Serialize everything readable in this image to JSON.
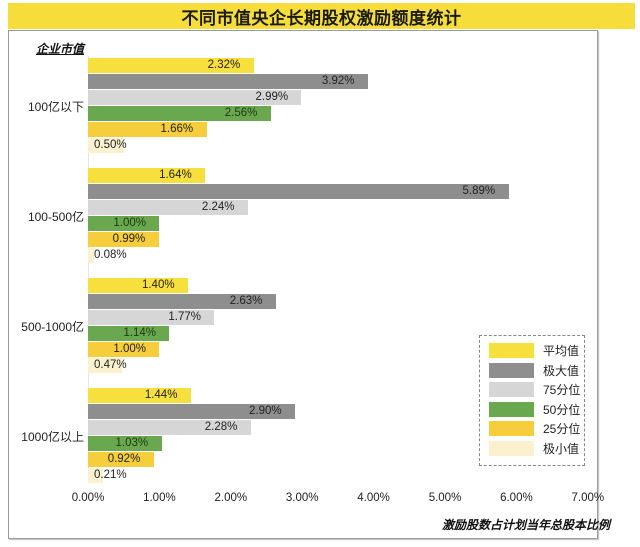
{
  "title": "不同市值央企长期股权激励额度统计",
  "colors": {
    "title_bar": "#f7dd3a",
    "平均值": "#f7df3d",
    "极大值": "#8e8e8e",
    "75分位": "#d6d6d6",
    "50分位": "#6aa84f",
    "25分位": "#f6cd3b",
    "极小值": "#fbf1cf"
  },
  "legend": [
    {
      "label": "平均值",
      "color": "#f7df3d"
    },
    {
      "label": "极大值",
      "color": "#8e8e8e"
    },
    {
      "label": "75分位",
      "color": "#d6d6d6"
    },
    {
      "label": "50分位",
      "color": "#6aa84f"
    },
    {
      "label": "25分位",
      "color": "#f6cd3b"
    },
    {
      "label": "极小值",
      "color": "#fbf1cf"
    }
  ],
  "y_axis_title": "企业市值",
  "x_axis_title": "激励股数占计划当年总股本比例",
  "x_ticks": [
    "0.00%",
    "1.00%",
    "2.00%",
    "3.00%",
    "4.00%",
    "5.00%",
    "6.00%",
    "7.00%"
  ],
  "groups": [
    {
      "label": "100亿以下",
      "values": [
        "2.32%",
        "3.92%",
        "2.99%",
        "2.56%",
        "1.66%",
        "0.50%"
      ]
    },
    {
      "label": "100-500亿",
      "values": [
        "1.64%",
        "5.89%",
        "2.24%",
        "1.00%",
        "0.99%",
        "0.08%"
      ]
    },
    {
      "label": "500-1000亿",
      "values": [
        "1.40%",
        "2.63%",
        "1.77%",
        "1.14%",
        "1.00%",
        "0.47%"
      ]
    },
    {
      "label": "1000亿以上",
      "values": [
        "1.44%",
        "2.90%",
        "2.28%",
        "1.03%",
        "0.92%",
        "0.21%"
      ]
    }
  ],
  "chart_data": {
    "type": "bar",
    "orientation": "horizontal",
    "title": "不同市值央企长期股权激励额度统计",
    "xlabel": "激励股数占计划当年总股本比例",
    "ylabel": "企业市值",
    "categories": [
      "100亿以下",
      "100-500亿",
      "500-1000亿",
      "1000亿以上"
    ],
    "series": [
      {
        "name": "平均值",
        "values": [
          2.32,
          1.64,
          1.4,
          1.44
        ]
      },
      {
        "name": "极大值",
        "values": [
          3.92,
          5.89,
          2.63,
          2.9
        ]
      },
      {
        "name": "75分位",
        "values": [
          2.99,
          2.24,
          1.77,
          2.28
        ]
      },
      {
        "name": "50分位",
        "values": [
          2.56,
          1.0,
          1.14,
          1.03
        ]
      },
      {
        "name": "25分位",
        "values": [
          1.66,
          0.99,
          1.0,
          0.92
        ]
      },
      {
        "name": "极小值",
        "values": [
          0.5,
          0.08,
          0.47,
          0.21
        ]
      }
    ],
    "unit": "%",
    "xlim": [
      0,
      7
    ],
    "x_ticks": [
      "0.00%",
      "1.00%",
      "2.00%",
      "3.00%",
      "4.00%",
      "5.00%",
      "6.00%",
      "7.00%"
    ],
    "grid": false,
    "legend_position": "bottom-right",
    "data_labels": true
  }
}
